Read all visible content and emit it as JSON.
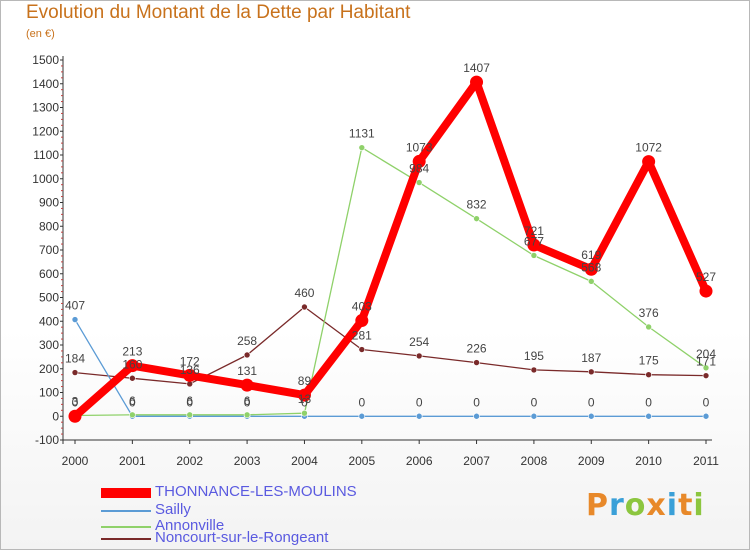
{
  "title": "Evolution du Montant de la Dette par Habitant",
  "unit_label": "(en €)",
  "logo_text": "Proxiti",
  "chart_data": {
    "type": "line",
    "title": "Evolution du Montant de la Dette par Habitant",
    "ylabel": "(en €)",
    "xlabel": "",
    "x": [
      "2000",
      "2001",
      "2002",
      "2003",
      "2004",
      "2005",
      "2006",
      "2007",
      "2008",
      "2009",
      "2010",
      "2011"
    ],
    "ylim": [
      -100,
      1500
    ],
    "yticks": [
      -100,
      0,
      100,
      200,
      300,
      400,
      500,
      600,
      700,
      800,
      900,
      1000,
      1100,
      1200,
      1300,
      1400,
      1500
    ],
    "grid": false,
    "legend_position": "bottom-left",
    "series": [
      {
        "name": "THONNANCE-LES-MOULINS",
        "color": "#ff0000",
        "values": [
          0,
          213,
          172,
          131,
          89,
          403,
          1073,
          1407,
          721,
          619,
          1072,
          527
        ],
        "labels": [
          "0",
          "213",
          "172",
          "131",
          "89",
          "403",
          "1073",
          "1407",
          "721",
          "619",
          "1072",
          "527"
        ]
      },
      {
        "name": "Sailly",
        "color": "#5b9bd5",
        "values": [
          407,
          0,
          0,
          0,
          0,
          0,
          0,
          0,
          0,
          0,
          0,
          0
        ],
        "labels": [
          "407",
          "0",
          "0",
          "0",
          "0",
          "0",
          "0",
          "0",
          "0",
          "0",
          "0",
          "0"
        ]
      },
      {
        "name": "Annonville",
        "color": "#8fd16a",
        "values": [
          3,
          6,
          6,
          6,
          13,
          1131,
          984,
          832,
          677,
          568,
          376,
          204
        ],
        "labels": [
          "3",
          "6",
          "6",
          "6",
          "13",
          "1131",
          "984",
          "832",
          "677",
          "568",
          "376",
          "204"
        ]
      },
      {
        "name": "Noncourt-sur-le-Rongeant",
        "color": "#7a2a2a",
        "values": [
          184,
          160,
          136,
          258,
          460,
          281,
          254,
          226,
          195,
          187,
          175,
          171
        ],
        "labels": [
          "184",
          "160",
          "136",
          "258",
          "460",
          "281",
          "254",
          "226",
          "195",
          "187",
          "175",
          "171"
        ]
      }
    ]
  }
}
